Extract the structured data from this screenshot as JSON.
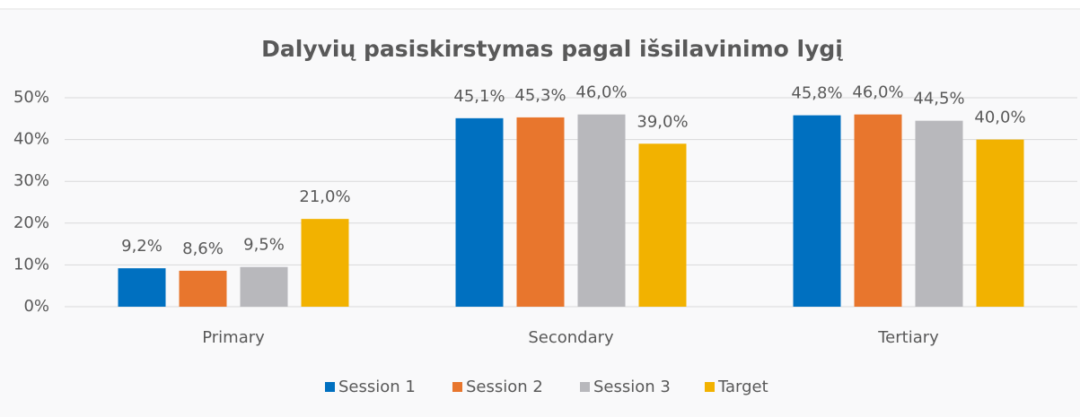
{
  "chart_data": {
    "type": "bar",
    "title": "Dalyvių pasiskirstymas pagal išsilavinimo lygį",
    "categories": [
      "Primary",
      "Secondary",
      "Tertiary"
    ],
    "series": [
      {
        "name": "Session 1",
        "color": "#0070c0",
        "values": [
          9.2,
          45.1,
          45.8
        ],
        "value_labels": [
          "9,2%",
          "45,1%",
          "45,8%"
        ]
      },
      {
        "name": "Session 2",
        "color": "#e8762d",
        "values": [
          8.6,
          45.3,
          46.0
        ],
        "value_labels": [
          "8,6%",
          "45,3%",
          "46,0%"
        ]
      },
      {
        "name": "Session 3",
        "color": "#b8b8bc",
        "values": [
          9.5,
          46.0,
          44.5
        ],
        "value_labels": [
          "9,5%",
          "46,0%",
          "44,5%"
        ]
      },
      {
        "name": "Target",
        "color": "#f2b200",
        "values": [
          21.0,
          39.0,
          40.0
        ],
        "value_labels": [
          "21,0%",
          "39,0%",
          "40,0%"
        ]
      }
    ],
    "ylim": [
      0,
      50
    ],
    "yticks": [
      {
        "value": 0,
        "label": "0%"
      },
      {
        "value": 10,
        "label": "10%"
      },
      {
        "value": 20,
        "label": "20%"
      },
      {
        "value": 30,
        "label": "30%"
      },
      {
        "value": 40,
        "label": "40%"
      },
      {
        "value": 50,
        "label": "50%"
      }
    ],
    "grid": true,
    "legend": "bottom"
  }
}
